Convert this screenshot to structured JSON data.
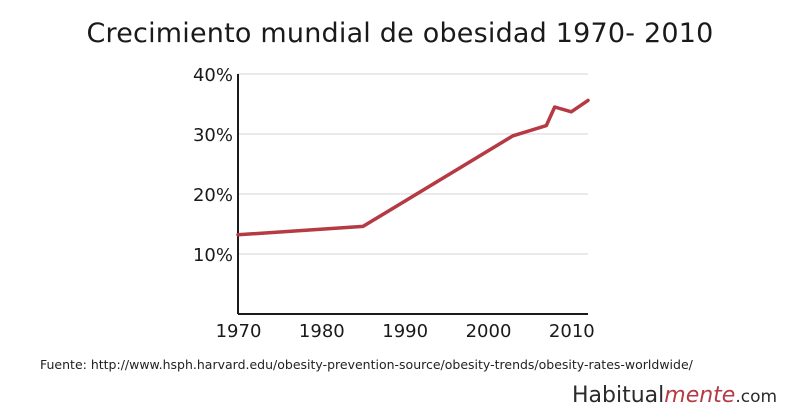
{
  "chart_data": {
    "type": "line",
    "title": "Crecimiento mundial de obesidad 1970- 2010",
    "xlabel": "",
    "ylabel": "",
    "x": [
      1970,
      1985,
      2003,
      2007,
      2008,
      2010,
      2012
    ],
    "series": [
      {
        "values": [
          13.2,
          14.6,
          29.7,
          31.4,
          34.5,
          33.7,
          35.6
        ]
      }
    ],
    "xlim": [
      1970,
      2012
    ],
    "ylim": [
      0,
      40
    ],
    "xticks": [
      1970,
      1980,
      1990,
      2000,
      2010
    ],
    "xtick_labels": [
      "1970",
      "1980",
      "1990",
      "2000",
      "2010"
    ],
    "yticks": [
      10,
      20,
      30,
      40
    ],
    "ytick_labels": [
      "10%",
      "20%",
      "30%",
      "40%"
    ],
    "grid": "horizontal",
    "line_color": "#b53a44",
    "grid_color": "#e3e3e3",
    "axis_color": "#1a1a1a"
  },
  "source": "Fuente: http://www.hsph.harvard.edu/obesity-prevention-source/obesity-trends/obesity-rates-worldwide/",
  "brand": {
    "prefix": "Habitual",
    "highlight": "mente",
    "suffix": ".com"
  }
}
